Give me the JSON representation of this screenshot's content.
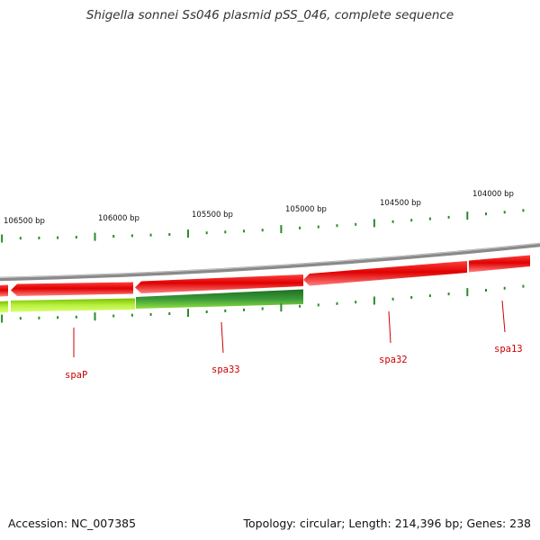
{
  "title": "Shigella sonnei Ss046 plasmid pSS_046, complete sequence",
  "footer": {
    "accession": "Accession: NC_007385",
    "summary": "Topology: circular; Length: 214,396 bp; Genes: 238"
  },
  "ruler_labels": [
    "106500 bp",
    "106000 bp",
    "105500 bp",
    "105000 bp",
    "104500 bp",
    "104000 bp"
  ],
  "gene_labels": [
    "spaP",
    "spa33",
    "spa32",
    "spa13"
  ],
  "colors": {
    "backbone": "#8a8a8a",
    "forward_gene": "#e80000",
    "forward_gene_light": "#ff7070",
    "cds_green": "#2e8b2e",
    "cds_light": "#b8f040",
    "tick": "#2a8a2a",
    "gene_label": "#cc0000"
  }
}
